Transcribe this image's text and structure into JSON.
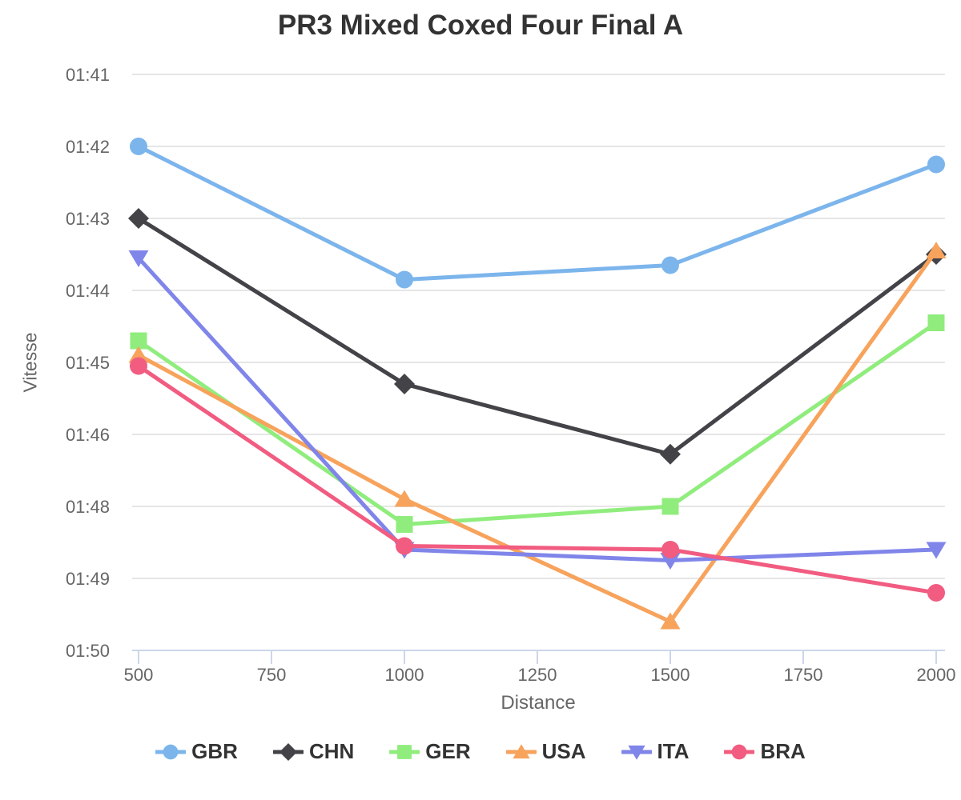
{
  "chart_data": {
    "type": "line",
    "title": "PR3 Mixed Coxed Four Final A",
    "xlabel": "Distance",
    "ylabel": "Vitesse",
    "x": [
      500,
      1000,
      1500,
      2000
    ],
    "x_ticks": [
      500,
      750,
      1000,
      1250,
      1500,
      1750,
      2000
    ],
    "x_tick_labels": [
      "500",
      "750",
      "1000",
      "1250",
      "1500",
      "1750",
      "2000"
    ],
    "y_tick_values": [
      101,
      102,
      103,
      104,
      105,
      106,
      108,
      109,
      110
    ],
    "y_tick_labels": [
      "01:41",
      "01:42",
      "01:43",
      "01:44",
      "01:45",
      "01:46",
      "01:48",
      "01:49",
      "01:50"
    ],
    "y_axis_note": "500m pace (mm:ss), faster at top; gridlines equally spaced, 01:47 not labelled",
    "grid": "horizontal",
    "legend_position": "bottom",
    "series": [
      {
        "name": "GBR",
        "color": "#7cb5ec",
        "marker": "circle",
        "values": [
          102.0,
          103.85,
          103.65,
          102.25
        ],
        "pace_labels": [
          "01:42.0",
          "01:43.9",
          "01:43.7",
          "01:42.3"
        ]
      },
      {
        "name": "CHN",
        "color": "#434348",
        "marker": "diamond",
        "values": [
          103.0,
          105.3,
          106.55,
          103.5
        ],
        "pace_labels": [
          "01:43.0",
          "01:45.3",
          "01:46.6",
          "01:43.5"
        ]
      },
      {
        "name": "GER",
        "color": "#90ed7d",
        "marker": "square",
        "values": [
          104.7,
          108.25,
          108.0,
          104.45
        ],
        "pace_labels": [
          "01:44.7",
          "01:48.3",
          "01:48.0",
          "01:44.5"
        ]
      },
      {
        "name": "USA",
        "color": "#f7a35c",
        "marker": "triangle",
        "values": [
          104.9,
          107.8,
          109.6,
          103.45
        ],
        "pace_labels": [
          "01:44.9",
          "01:47.8",
          "01:49.6",
          "01:43.5"
        ]
      },
      {
        "name": "ITA",
        "color": "#8085e9",
        "marker": "triangle-down",
        "values": [
          103.55,
          108.6,
          108.75,
          108.6
        ],
        "pace_labels": [
          "01:43.6",
          "01:48.6",
          "01:48.8",
          "01:48.6"
        ]
      },
      {
        "name": "BRA",
        "color": "#f15c80",
        "marker": "circle",
        "values": [
          105.05,
          108.55,
          108.6,
          109.2
        ],
        "pace_labels": [
          "01:45.1",
          "01:48.6",
          "01:48.6",
          "01:49.2"
        ]
      }
    ],
    "style": {
      "gridline_color": "#e6e6e6",
      "axis_line_color": "#ccd6eb",
      "tick_label_color": "#666666",
      "title_color": "#333333",
      "axis_title_color": "#666666",
      "legend_text_color": "#333333",
      "background_color": "#ffffff"
    }
  }
}
